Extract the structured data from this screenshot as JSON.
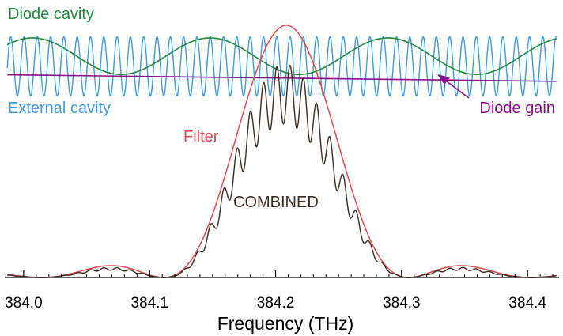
{
  "chart_data": {
    "type": "line",
    "xlabel": "Frequency (THz)",
    "xlim": [
      383.985,
      384.425
    ],
    "x_ticks": [
      "384.0",
      "384.1",
      "384.2",
      "384.3",
      "384.4"
    ],
    "x_tick_values": [
      384.0,
      384.1,
      384.2,
      384.3,
      384.4
    ],
    "grid": false,
    "series": [
      {
        "name": "Diode cavity",
        "color": "#1e8a3c",
        "shape": "cosine",
        "peaks_at_x": [
          384.007,
          384.148,
          384.288
        ],
        "relative_level": [
          0.805,
          0.95
        ]
      },
      {
        "name": "External cavity",
        "color": "#3d9be6",
        "shape": "cosine",
        "period": 0.01056,
        "phase_peak_x": 384.2115,
        "relative_level": [
          0.72,
          0.955
        ]
      },
      {
        "name": "Diode gain",
        "color": "#8a0f8f",
        "shape": "linear",
        "x": [
          384.0,
          384.42
        ],
        "relative_level": [
          0.803,
          0.778
        ]
      },
      {
        "name": "Filter",
        "color": "#e04a4f",
        "shape": "sinc-squared",
        "peak_x": 384.2085,
        "first_null_half_width": 0.0971,
        "peak": 1.0
      },
      {
        "name": "COMBINED",
        "color": "#3b2a1e",
        "shape": "product",
        "peak": 0.915
      }
    ]
  },
  "annotations": {
    "diode_cavity": "Diode cavity",
    "external_cavity": "External cavity",
    "diode_gain": "Diode gain",
    "filter": "Filter",
    "combined": "COMBINED"
  },
  "colors": {
    "diode_cavity": "#1e8a3c",
    "external_cavity": "#3d9be6",
    "diode_gain": "#8a0f8f",
    "filter": "#e04a4f",
    "combined": "#3b2a1e",
    "axis": "#000000"
  }
}
